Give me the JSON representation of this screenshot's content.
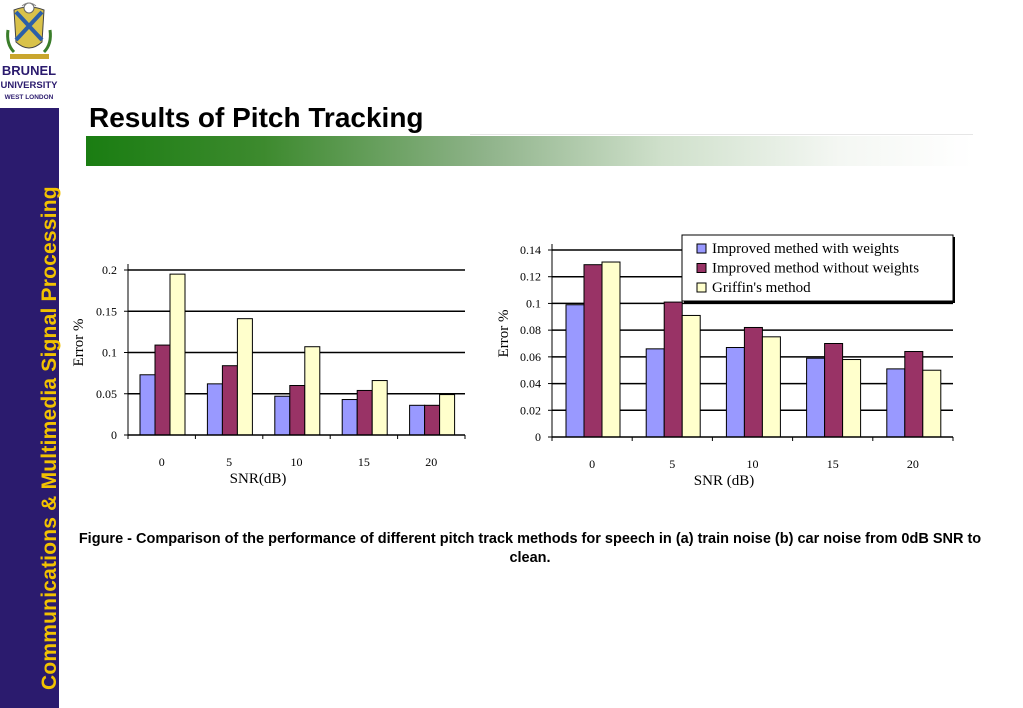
{
  "sidebar": {
    "university_name": "BRUNEL",
    "university_sub": "UNIVERSITY",
    "university_loc": "WEST LONDON",
    "vertical_text": "Communications & Multimedia Signal Processing"
  },
  "slide": {
    "title": "Results of Pitch Tracking",
    "caption": "Figure  - Comparison of the performance of different pitch track methods for speech  in (a) train noise (b) car noise from 0dB SNR to clean."
  },
  "colors": {
    "sidebar": "#2b1b6e",
    "sidebar_text": "#f2c200",
    "series_with_weights": "#9999ff",
    "series_without_weights": "#993366",
    "series_griffin": "#ffffcc"
  },
  "chart_data": [
    {
      "type": "bar",
      "categories": [
        "0",
        "5",
        "10",
        "15",
        "20"
      ],
      "series": [
        {
          "values": [
            0.073,
            0.062,
            0.047,
            0.043,
            0.036
          ]
        },
        {
          "values": [
            0.109,
            0.084,
            0.06,
            0.054,
            0.036
          ]
        },
        {
          "values": [
            0.195,
            0.141,
            0.107,
            0.066,
            0.049
          ]
        }
      ],
      "xlabel": "SNR(dB)",
      "ylabel": "Error %",
      "ylim": [
        0,
        0.2
      ],
      "yticks": [
        "0",
        "0.05",
        "0.1",
        "0.15",
        "0.2"
      ],
      "grid": true,
      "legend": null
    },
    {
      "type": "bar",
      "categories": [
        "0",
        "5",
        "10",
        "15",
        "20"
      ],
      "series": [
        {
          "name": "Improved methed with weights",
          "values": [
            0.099,
            0.066,
            0.067,
            0.059,
            0.051
          ]
        },
        {
          "name": "Improved method without weights",
          "values": [
            0.129,
            0.101,
            0.082,
            0.07,
            0.064
          ]
        },
        {
          "name": "Griffin's method",
          "values": [
            0.131,
            0.091,
            0.075,
            0.058,
            0.05
          ]
        }
      ],
      "xlabel": "SNR (dB)",
      "ylabel": "Error %",
      "ylim": [
        0,
        0.14
      ],
      "yticks": [
        "0",
        "0.02",
        "0.04",
        "0.06",
        "0.08",
        "0.1",
        "0.12",
        "0.14"
      ],
      "grid": true,
      "legend": "top-right"
    }
  ]
}
